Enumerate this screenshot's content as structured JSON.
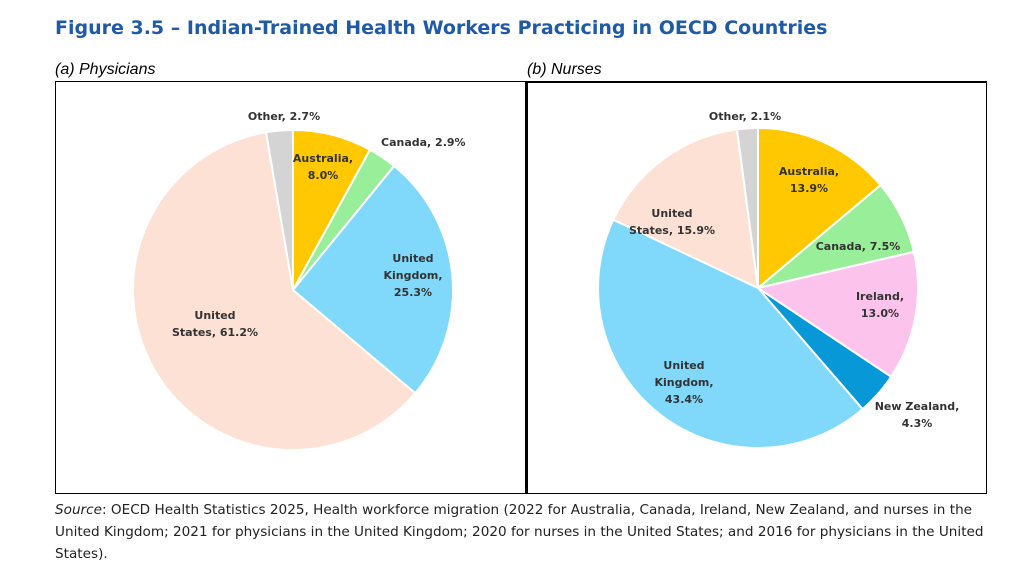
{
  "figure_title": "Figure 3.5 – Indian-Trained Health Workers Practicing in OECD Countries",
  "source": {
    "label": "Source",
    "text": ": OECD Health Statistics 2025, Health workforce migration  (2022 for Australia, Canada, Ireland, New Zealand, and nurses in the United Kingdom; 2021 for physicians in the United Kingdom; 2020 for nurses in the United States; and 2016 for physicians in the United States)."
  },
  "chart_data": [
    {
      "type": "pie",
      "title": "(a) Physicians",
      "slices": [
        {
          "name": "Australia",
          "value": 8.0,
          "color": "#ffc800",
          "label_lines": [
            "Australia,",
            "8.0%"
          ]
        },
        {
          "name": "Canada",
          "value": 2.9,
          "color": "#99ee99",
          "label_lines": [
            "Canada, 2.9%"
          ]
        },
        {
          "name": "United Kingdom",
          "value": 25.3,
          "color": "#80d9fb",
          "label_lines": [
            "United",
            "Kingdom,",
            "25.3%"
          ]
        },
        {
          "name": "United States",
          "value": 61.2,
          "color": "#fde1d4",
          "label_lines": [
            "United",
            "States, 61.2%"
          ]
        },
        {
          "name": "Other",
          "value": 2.7,
          "color": "#d4d4d4",
          "label_lines": [
            "Other, 2.7%"
          ]
        }
      ]
    },
    {
      "type": "pie",
      "title": "(b) Nurses",
      "slices": [
        {
          "name": "Australia",
          "value": 13.9,
          "color": "#ffc800",
          "label_lines": [
            "Australia,",
            "13.9%"
          ]
        },
        {
          "name": "Canada",
          "value": 7.5,
          "color": "#99ee99",
          "label_lines": [
            "Canada, 7.5%"
          ]
        },
        {
          "name": "Ireland",
          "value": 13.0,
          "color": "#fcc4ec",
          "label_lines": [
            "Ireland,",
            "13.0%"
          ]
        },
        {
          "name": "New Zealand",
          "value": 4.3,
          "color": "#0798d8",
          "label_lines": [
            "New Zealand,",
            "4.3%"
          ]
        },
        {
          "name": "United Kingdom",
          "value": 43.4,
          "color": "#80d9fb",
          "label_lines": [
            "United",
            "Kingdom,",
            "43.4%"
          ]
        },
        {
          "name": "United States",
          "value": 15.9,
          "color": "#fde1d4",
          "label_lines": [
            "United",
            "States, 15.9%"
          ]
        },
        {
          "name": "Other",
          "value": 2.1,
          "color": "#d4d4d4",
          "label_lines": [
            "Other, 2.1%"
          ]
        }
      ]
    }
  ]
}
